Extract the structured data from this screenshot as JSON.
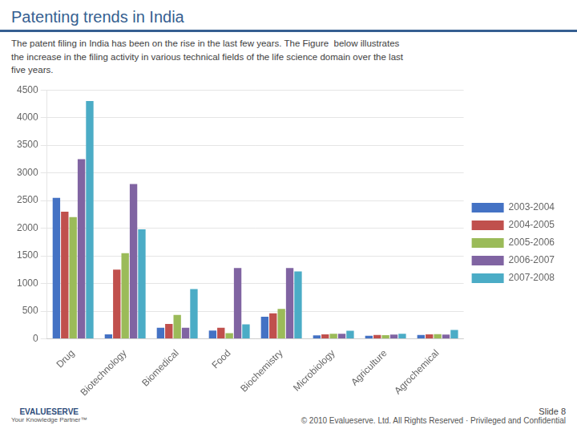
{
  "chart_data": {
    "type": "bar",
    "title": "Patenting trends in India",
    "subtitle": "The patent filing in India has been on the rise in the last few years. The Figure  below illustrates\nthe increase in the filing activity in various technical fields of the life science domain over the last\nfive years.",
    "categories": [
      "Drug",
      "Biotechnology",
      "Biomedical",
      "Food",
      "Biochemistry",
      "Microbiology",
      "Agriculture",
      "Agrochemical"
    ],
    "series": [
      {
        "name": "2003-2004",
        "color": "#4472c4",
        "values": [
          2550,
          80,
          200,
          150,
          400,
          60,
          55,
          70
        ]
      },
      {
        "name": "2004-2005",
        "color": "#c0504d",
        "values": [
          2300,
          1250,
          270,
          200,
          460,
          80,
          70,
          80
        ]
      },
      {
        "name": "2005-2006",
        "color": "#9bbb59",
        "values": [
          2200,
          1550,
          430,
          100,
          540,
          90,
          65,
          85
        ]
      },
      {
        "name": "2006-2007",
        "color": "#8064a2",
        "values": [
          3250,
          2800,
          200,
          1280,
          1280,
          90,
          75,
          75
        ]
      },
      {
        "name": "2007-2008",
        "color": "#4bacc6",
        "values": [
          4300,
          1980,
          900,
          260,
          1220,
          145,
          90,
          160
        ]
      }
    ],
    "ylim": [
      0,
      4500
    ],
    "yticks": [
      0,
      500,
      1000,
      1500,
      2000,
      2500,
      3000,
      3500,
      4000,
      4500
    ],
    "grid": true,
    "legend": "right",
    "annotations": [
      "EVALUESERVE",
      "Your Knowledge Partner™",
      "Slide 8",
      "© 2010 Evalueserve. Ltd. All Rights Reserved · Privileged and Confidential"
    ],
    "color": "#365f91"
  }
}
